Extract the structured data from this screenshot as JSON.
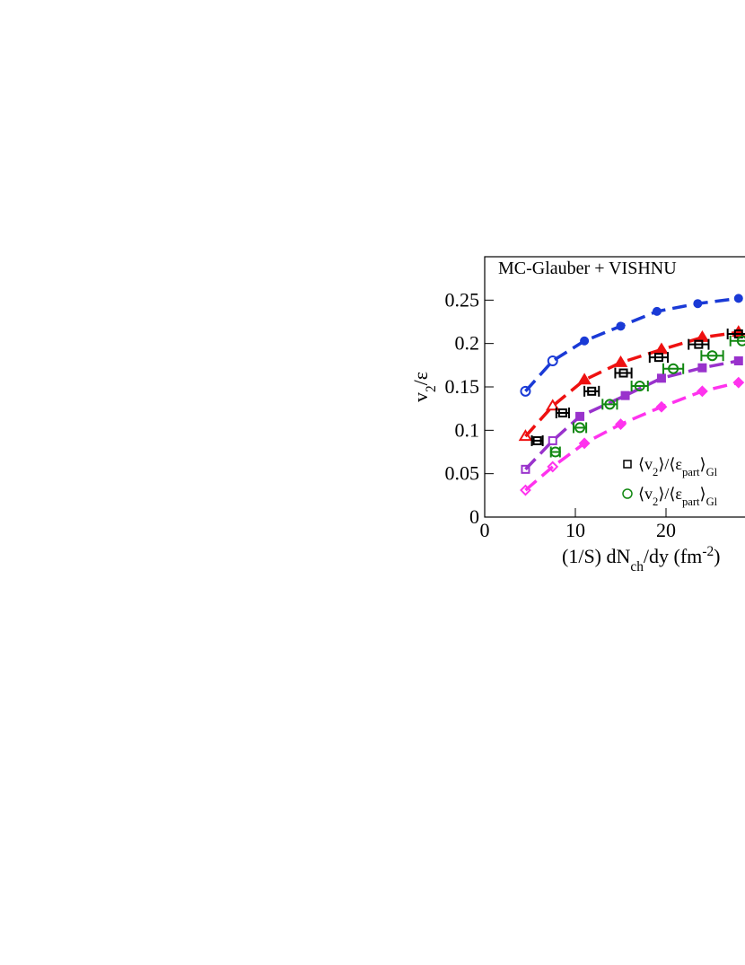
{
  "chart_data": {
    "type": "line",
    "title": "MC-Glauber + VISHNU",
    "y_label_parts": [
      "v",
      "2",
      "/ε"
    ],
    "x_label_parts": [
      "(1/S) dN",
      "ch",
      "/dy (fm",
      "-2",
      ")"
    ],
    "xlim": [
      0,
      30
    ],
    "ylim": [
      0,
      0.3
    ],
    "xticks": [
      0,
      10,
      20
    ],
    "yticks": [
      0,
      0.05,
      0.1,
      0.15,
      0.2,
      0.25
    ],
    "series": [
      {
        "color": "#1a3ad6",
        "marker": "circle",
        "x": [
          4.5,
          7.5,
          11,
          15,
          19,
          23.5,
          28
        ],
        "values": [
          0.145,
          0.18,
          0.203,
          0.22,
          0.237,
          0.246,
          0.252
        ]
      },
      {
        "color": "#ee1111",
        "marker": "triangle",
        "x": [
          4.5,
          7.5,
          11,
          15,
          19.5,
          24,
          28
        ],
        "values": [
          0.093,
          0.128,
          0.158,
          0.178,
          0.193,
          0.207,
          0.213
        ]
      },
      {
        "color": "#9932cc",
        "marker": "square",
        "x": [
          4.5,
          7.5,
          10.5,
          15.5,
          19.5,
          24,
          28
        ],
        "values": [
          0.055,
          0.088,
          0.116,
          0.14,
          0.16,
          0.172,
          0.18
        ]
      },
      {
        "color": "#ff33ee",
        "marker": "diamond",
        "x": [
          4.5,
          7.5,
          11,
          15,
          19.5,
          24,
          28
        ],
        "values": [
          0.031,
          0.058,
          0.085,
          0.107,
          0.127,
          0.145,
          0.155
        ]
      }
    ],
    "data_series": [
      {
        "name_parts": [
          "⟨v",
          "2",
          "⟩/⟨ε",
          "part",
          "⟩",
          "Gl"
        ],
        "color": "#000000",
        "marker": "square",
        "x": [
          5.8,
          8.6,
          11.8,
          15.3,
          19.2,
          23.6,
          28
        ],
        "xerr": [
          0.6,
          0.7,
          0.8,
          0.9,
          1.0,
          1.1,
          1.2
        ],
        "values": [
          0.088,
          0.12,
          0.145,
          0.166,
          0.184,
          0.199,
          0.211
        ]
      },
      {
        "name_parts": [
          "⟨v",
          "2",
          "⟩/⟨ε",
          "part",
          "⟩",
          "Gl"
        ],
        "color": "#118811",
        "marker": "circle",
        "x": [
          7.8,
          10.5,
          13.8,
          17.1,
          20.8,
          25.1,
          28.4
        ],
        "xerr": [
          0.5,
          0.7,
          0.8,
          0.9,
          1.1,
          1.2,
          1.3
        ],
        "values": [
          0.075,
          0.103,
          0.13,
          0.151,
          0.171,
          0.186,
          0.203
        ]
      }
    ]
  }
}
